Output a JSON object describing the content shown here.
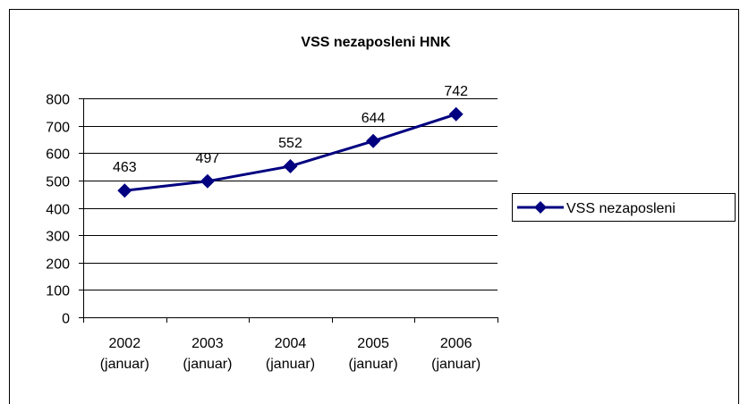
{
  "chart_data": {
    "type": "line",
    "title": "VSS nezaposleni HNK",
    "categories": [
      "2002 (januar)",
      "2003 (januar)",
      "2004 (januar)",
      "2005 (januar)",
      "2006 (januar)"
    ],
    "series": [
      {
        "name": "VSS nezaposleni",
        "color": "#000080",
        "values": [
          463,
          497,
          552,
          644,
          742
        ]
      }
    ],
    "ylim": [
      0,
      800
    ],
    "yticks": [
      0,
      100,
      200,
      300,
      400,
      500,
      600,
      700,
      800
    ],
    "grid": true,
    "legend": "right"
  }
}
